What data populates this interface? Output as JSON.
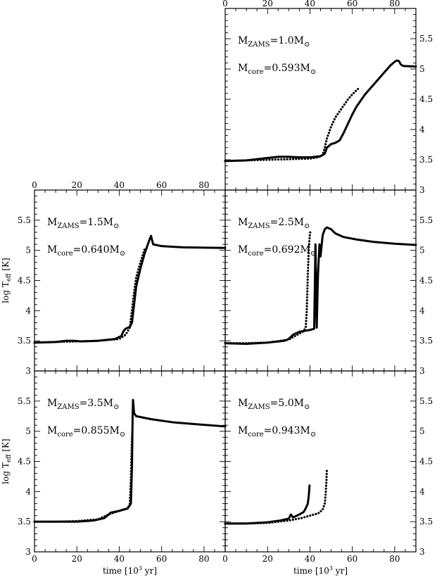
{
  "chart_data": [
    {
      "type": "line",
      "mzams_prefix": "M",
      "mzams_sub": "ZAMS",
      "mzams_value": "=1.0M",
      "mcore_prefix": "M",
      "mcore_sub": "core",
      "mcore_value": "=0.593M",
      "xlim": [
        0,
        90
      ],
      "ylim": [
        3,
        6
      ],
      "xticks": [
        0,
        20,
        40,
        60,
        80
      ],
      "yticks": [
        3,
        3.5,
        4,
        4.5,
        5,
        5.5
      ],
      "series": [
        {
          "style": "solid",
          "points": [
            [
              0,
              3.48
            ],
            [
              10,
              3.49
            ],
            [
              15,
              3.51
            ],
            [
              20,
              3.53
            ],
            [
              25,
              3.55
            ],
            [
              30,
              3.55
            ],
            [
              35,
              3.54
            ],
            [
              40,
              3.54
            ],
            [
              45,
              3.56
            ],
            [
              47,
              3.6
            ],
            [
              48,
              3.7
            ],
            [
              50,
              3.76
            ],
            [
              52,
              3.78
            ],
            [
              54,
              3.82
            ],
            [
              56,
              3.95
            ],
            [
              58,
              4.1
            ],
            [
              60,
              4.25
            ],
            [
              62,
              4.38
            ],
            [
              64,
              4.48
            ],
            [
              66,
              4.58
            ],
            [
              68,
              4.66
            ],
            [
              70,
              4.74
            ],
            [
              72,
              4.82
            ],
            [
              74,
              4.9
            ],
            [
              76,
              4.98
            ],
            [
              78,
              5.06
            ],
            [
              80,
              5.12
            ],
            [
              81,
              5.14
            ],
            [
              82,
              5.13
            ],
            [
              83,
              5.07
            ],
            [
              84,
              5.05
            ],
            [
              90,
              5.04
            ]
          ]
        },
        {
          "style": "dotted",
          "points": [
            [
              0,
              3.48
            ],
            [
              10,
              3.49
            ],
            [
              20,
              3.5
            ],
            [
              30,
              3.51
            ],
            [
              40,
              3.52
            ],
            [
              44,
              3.54
            ],
            [
              46,
              3.58
            ],
            [
              47,
              3.7
            ],
            [
              48,
              3.85
            ],
            [
              50,
              4.05
            ],
            [
              52,
              4.2
            ],
            [
              54,
              4.3
            ],
            [
              56,
              4.4
            ],
            [
              58,
              4.5
            ],
            [
              60,
              4.58
            ],
            [
              62,
              4.65
            ],
            [
              63,
              4.68
            ]
          ]
        }
      ]
    },
    {
      "type": "line",
      "mzams_prefix": "M",
      "mzams_sub": "ZAMS",
      "mzams_value": "=1.5M",
      "mcore_prefix": "M",
      "mcore_sub": "core",
      "mcore_value": "=0.640M",
      "ylabel_main": "log T",
      "ylabel_sub": "eff",
      "ylabel_unit": "[K]",
      "xlim": [
        0,
        90
      ],
      "ylim": [
        3,
        6
      ],
      "xticks": [
        0,
        20,
        40,
        60,
        80
      ],
      "yticks": [
        3,
        3.5,
        4,
        4.5,
        5,
        5.5
      ],
      "series": [
        {
          "style": "solid",
          "points": [
            [
              0,
              3.47
            ],
            [
              10,
              3.48
            ],
            [
              15,
              3.5
            ],
            [
              18,
              3.5
            ],
            [
              22,
              3.49
            ],
            [
              30,
              3.5
            ],
            [
              38,
              3.53
            ],
            [
              41,
              3.58
            ],
            [
              42,
              3.66
            ],
            [
              43,
              3.7
            ],
            [
              45,
              3.73
            ],
            [
              46,
              3.8
            ],
            [
              47,
              4.1
            ],
            [
              48,
              4.4
            ],
            [
              50,
              4.7
            ],
            [
              52,
              4.95
            ],
            [
              54,
              5.15
            ],
            [
              55,
              5.24
            ],
            [
              56,
              5.1
            ],
            [
              60,
              5.07
            ],
            [
              70,
              5.05
            ],
            [
              90,
              5.04
            ]
          ]
        },
        {
          "style": "dotted",
          "points": [
            [
              0,
              3.47
            ],
            [
              10,
              3.48
            ],
            [
              20,
              3.49
            ],
            [
              30,
              3.5
            ],
            [
              40,
              3.53
            ],
            [
              43,
              3.6
            ],
            [
              45,
              3.72
            ],
            [
              46,
              4.0
            ],
            [
              47,
              4.3
            ],
            [
              48,
              4.55
            ],
            [
              50,
              4.8
            ],
            [
              52,
              5.02
            ],
            [
              53,
              5.04
            ]
          ]
        }
      ]
    },
    {
      "type": "line",
      "mzams_prefix": "M",
      "mzams_sub": "ZAMS",
      "mzams_value": "=2.5M",
      "mcore_prefix": "M",
      "mcore_sub": "core",
      "mcore_value": "=0.692M",
      "xlim": [
        0,
        90
      ],
      "ylim": [
        3,
        6
      ],
      "xticks": [
        0,
        20,
        40,
        60,
        80
      ],
      "yticks": [
        3,
        3.5,
        4,
        4.5,
        5,
        5.5
      ],
      "series": [
        {
          "style": "solid",
          "points": [
            [
              0,
              3.46
            ],
            [
              10,
              3.45
            ],
            [
              20,
              3.47
            ],
            [
              28,
              3.5
            ],
            [
              30,
              3.53
            ],
            [
              32,
              3.6
            ],
            [
              35,
              3.65
            ],
            [
              40,
              3.68
            ],
            [
              42,
              3.7
            ],
            [
              42.6,
              5.1
            ],
            [
              43.2,
              3.72
            ],
            [
              43.8,
              4.6
            ],
            [
              44.5,
              5.1
            ],
            [
              45,
              4.9
            ],
            [
              46,
              5.25
            ],
            [
              47,
              5.35
            ],
            [
              48,
              5.38
            ],
            [
              50,
              5.35
            ],
            [
              52,
              5.28
            ],
            [
              56,
              5.22
            ],
            [
              62,
              5.18
            ],
            [
              70,
              5.14
            ],
            [
              80,
              5.11
            ],
            [
              90,
              5.09
            ]
          ]
        },
        {
          "style": "dotted",
          "points": [
            [
              0,
              3.46
            ],
            [
              10,
              3.46
            ],
            [
              20,
              3.47
            ],
            [
              30,
              3.52
            ],
            [
              34,
              3.6
            ],
            [
              37,
              3.66
            ],
            [
              38,
              3.72
            ],
            [
              38.5,
              4.0
            ],
            [
              39,
              4.6
            ],
            [
              39.5,
              5.05
            ],
            [
              40,
              5.28
            ],
            [
              40.3,
              5.32
            ]
          ]
        }
      ]
    },
    {
      "type": "line",
      "mzams_prefix": "M",
      "mzams_sub": "ZAMS",
      "mzams_value": "=3.5M",
      "mcore_prefix": "M",
      "mcore_sub": "core",
      "mcore_value": "=0.855M",
      "ylabel_main": "log T",
      "ylabel_sub": "eff",
      "ylabel_unit": "[K]",
      "xlabel": "time [10",
      "xlabel_sup": "3",
      "xlabel_tail": " yr]",
      "xlim": [
        0,
        90
      ],
      "ylim": [
        3,
        6
      ],
      "xticks": [
        0,
        20,
        40,
        60,
        80
      ],
      "yticks": [
        3,
        3.5,
        4,
        4.5,
        5,
        5.5
      ],
      "series": [
        {
          "style": "solid",
          "points": [
            [
              0,
              3.5
            ],
            [
              10,
              3.5
            ],
            [
              20,
              3.5
            ],
            [
              28,
              3.52
            ],
            [
              33,
              3.56
            ],
            [
              36,
              3.65
            ],
            [
              40,
              3.68
            ],
            [
              44,
              3.72
            ],
            [
              45.5,
              3.8
            ],
            [
              46,
              4.4
            ],
            [
              46.3,
              5.2
            ],
            [
              46.5,
              5.52
            ],
            [
              47,
              5.3
            ],
            [
              48,
              5.25
            ],
            [
              55,
              5.2
            ],
            [
              65,
              5.15
            ],
            [
              75,
              5.12
            ],
            [
              90,
              5.08
            ]
          ]
        },
        {
          "style": "dotted",
          "points": [
            [
              0,
              3.5
            ],
            [
              10,
              3.5
            ],
            [
              20,
              3.51
            ],
            [
              30,
              3.54
            ],
            [
              35,
              3.62
            ],
            [
              40,
              3.68
            ],
            [
              44,
              3.72
            ],
            [
              45,
              3.8
            ],
            [
              45.5,
              4.2
            ],
            [
              45.8,
              4.6
            ],
            [
              46,
              4.85
            ],
            [
              46.2,
              5.0
            ]
          ]
        }
      ]
    },
    {
      "type": "line",
      "mzams_prefix": "M",
      "mzams_sub": "ZAMS",
      "mzams_value": "=5.0M",
      "mcore_prefix": "M",
      "mcore_sub": "core",
      "mcore_value": "=0.943M",
      "xlabel": "time [10",
      "xlabel_sup": "3",
      "xlabel_tail": " yr]",
      "xlim": [
        0,
        90
      ],
      "ylim": [
        3,
        6
      ],
      "xticks": [
        0,
        20,
        40,
        60,
        80
      ],
      "yticks": [
        3,
        3.5,
        4,
        4.5,
        5,
        5.5
      ],
      "series": [
        {
          "style": "solid",
          "points": [
            [
              0,
              3.47
            ],
            [
              10,
              3.47
            ],
            [
              20,
              3.49
            ],
            [
              26,
              3.52
            ],
            [
              30,
              3.55
            ],
            [
              31,
              3.62
            ],
            [
              32,
              3.57
            ],
            [
              35,
              3.62
            ],
            [
              37,
              3.66
            ],
            [
              38,
              3.72
            ],
            [
              39,
              3.8
            ],
            [
              39.5,
              3.95
            ],
            [
              39.8,
              4.1
            ]
          ]
        },
        {
          "style": "dotted",
          "points": [
            [
              0,
              3.47
            ],
            [
              10,
              3.47
            ],
            [
              20,
              3.48
            ],
            [
              30,
              3.52
            ],
            [
              36,
              3.56
            ],
            [
              40,
              3.6
            ],
            [
              44,
              3.64
            ],
            [
              46,
              3.7
            ],
            [
              47,
              3.8
            ],
            [
              47.5,
              4.0
            ],
            [
              47.8,
              4.2
            ],
            [
              48,
              4.38
            ]
          ]
        }
      ]
    }
  ]
}
